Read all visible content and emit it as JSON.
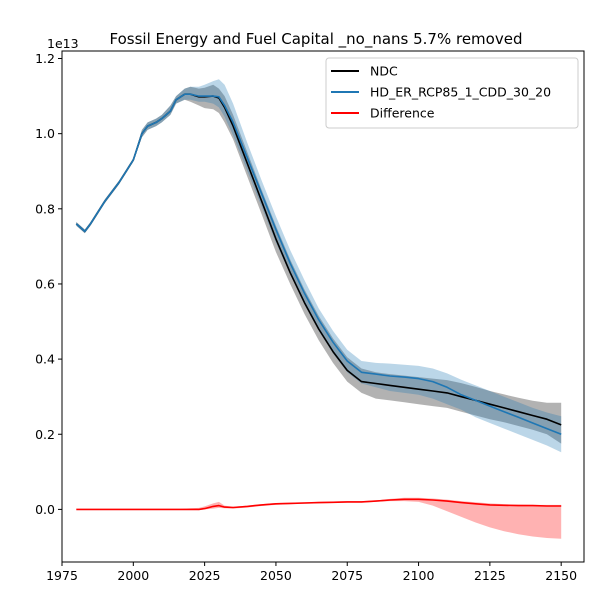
{
  "chart_data": {
    "type": "line",
    "title": "Fossil Energy and Fuel Capital _no_nans 5.7% removed",
    "xlabel": "",
    "ylabel": "",
    "y_offset_text": "1e13",
    "xlim": [
      1975,
      2158
    ],
    "ylim": [
      -0.14,
      1.22
    ],
    "y_scale_factor": 10000000000000.0,
    "x_ticks": [
      1975,
      2000,
      2025,
      2050,
      2075,
      2100,
      2125,
      2150
    ],
    "y_ticks": [
      0.0,
      0.2,
      0.4,
      0.6,
      0.8,
      1.0,
      1.2
    ],
    "y_tick_labels": [
      "0.0",
      "0.2",
      "0.4",
      "0.6",
      "0.8",
      "1.0",
      "1.2"
    ],
    "grid": false,
    "legend_position": "top-right",
    "x": [
      1980,
      1983,
      1985,
      1990,
      1995,
      2000,
      2003,
      2005,
      2008,
      2010,
      2013,
      2015,
      2018,
      2020,
      2023,
      2025,
      2028,
      2030,
      2032,
      2035,
      2040,
      2045,
      2050,
      2055,
      2060,
      2065,
      2070,
      2075,
      2080,
      2085,
      2090,
      2095,
      2100,
      2105,
      2110,
      2115,
      2120,
      2125,
      2130,
      2135,
      2140,
      2145,
      2150
    ],
    "series": [
      {
        "name": "NDC",
        "color": "#000000",
        "values": [
          0.76,
          0.74,
          0.76,
          0.82,
          0.87,
          0.93,
          1.0,
          1.02,
          1.03,
          1.04,
          1.06,
          1.09,
          1.105,
          1.105,
          1.098,
          1.098,
          1.1,
          1.095,
          1.07,
          1.02,
          0.92,
          0.82,
          0.72,
          0.63,
          0.55,
          0.48,
          0.42,
          0.37,
          0.34,
          0.335,
          0.33,
          0.325,
          0.32,
          0.315,
          0.31,
          0.3,
          0.29,
          0.28,
          0.27,
          0.26,
          0.25,
          0.24,
          0.225
        ],
        "band_low": [
          0.755,
          0.735,
          0.755,
          0.815,
          0.865,
          0.925,
          0.99,
          1.01,
          1.02,
          1.03,
          1.05,
          1.08,
          1.09,
          1.085,
          1.075,
          1.068,
          1.065,
          1.055,
          1.03,
          0.985,
          0.885,
          0.785,
          0.685,
          0.6,
          0.52,
          0.45,
          0.39,
          0.34,
          0.31,
          0.295,
          0.29,
          0.285,
          0.28,
          0.275,
          0.27,
          0.26,
          0.25,
          0.24,
          0.232,
          0.222,
          0.212,
          0.2,
          0.175
        ],
        "band_high": [
          0.765,
          0.745,
          0.765,
          0.825,
          0.875,
          0.935,
          1.01,
          1.03,
          1.04,
          1.05,
          1.075,
          1.1,
          1.12,
          1.125,
          1.12,
          1.122,
          1.13,
          1.12,
          1.1,
          1.05,
          0.95,
          0.85,
          0.755,
          0.665,
          0.585,
          0.515,
          0.455,
          0.405,
          0.375,
          0.365,
          0.36,
          0.356,
          0.352,
          0.348,
          0.344,
          0.336,
          0.326,
          0.315,
          0.306,
          0.297,
          0.289,
          0.284,
          0.284
        ]
      },
      {
        "name": "HD_ER_RCP85_1_CDD_30_20",
        "color": "#1f77b4",
        "values": [
          0.76,
          0.74,
          0.76,
          0.82,
          0.87,
          0.93,
          1.0,
          1.02,
          1.03,
          1.04,
          1.06,
          1.09,
          1.105,
          1.105,
          1.1,
          1.1,
          1.1,
          1.098,
          1.075,
          1.03,
          0.935,
          0.84,
          0.745,
          0.655,
          0.575,
          0.505,
          0.445,
          0.395,
          0.365,
          0.36,
          0.355,
          0.352,
          0.348,
          0.34,
          0.325,
          0.305,
          0.29,
          0.275,
          0.26,
          0.245,
          0.23,
          0.215,
          0.2
        ],
        "band_low": [
          0.755,
          0.735,
          0.755,
          0.815,
          0.865,
          0.925,
          0.99,
          1.01,
          1.02,
          1.03,
          1.05,
          1.08,
          1.09,
          1.09,
          1.085,
          1.085,
          1.08,
          1.07,
          1.045,
          0.995,
          0.9,
          0.805,
          0.71,
          0.625,
          0.545,
          0.475,
          0.415,
          0.365,
          0.335,
          0.325,
          0.315,
          0.31,
          0.305,
          0.295,
          0.28,
          0.265,
          0.245,
          0.23,
          0.215,
          0.2,
          0.185,
          0.17,
          0.152
        ],
        "band_high": [
          0.765,
          0.745,
          0.765,
          0.825,
          0.875,
          0.935,
          1.01,
          1.03,
          1.04,
          1.05,
          1.075,
          1.1,
          1.12,
          1.125,
          1.125,
          1.13,
          1.14,
          1.145,
          1.13,
          1.08,
          0.975,
          0.875,
          0.78,
          0.69,
          0.61,
          0.535,
          0.475,
          0.425,
          0.395,
          0.39,
          0.388,
          0.385,
          0.382,
          0.375,
          0.362,
          0.345,
          0.33,
          0.315,
          0.3,
          0.285,
          0.27,
          0.258,
          0.248
        ]
      },
      {
        "name": "Difference",
        "color": "#ff0000",
        "values": [
          0.0,
          0.0,
          0.0,
          0.0,
          0.0,
          0.0,
          0.0,
          0.0,
          0.0,
          0.0,
          0.0,
          0.0,
          0.0,
          0.0,
          0.0,
          0.002,
          0.008,
          0.01,
          0.006,
          0.005,
          0.008,
          0.012,
          0.015,
          0.016,
          0.017,
          0.018,
          0.019,
          0.02,
          0.02,
          0.022,
          0.025,
          0.027,
          0.027,
          0.025,
          0.022,
          0.018,
          0.015,
          0.012,
          0.011,
          0.01,
          0.01,
          0.009,
          0.009
        ],
        "band_low": [
          0.0,
          0.0,
          0.0,
          0.0,
          0.0,
          0.0,
          0.0,
          0.0,
          0.0,
          0.0,
          0.0,
          0.0,
          0.0,
          0.0,
          -0.002,
          0.0,
          0.002,
          0.004,
          0.003,
          0.002,
          0.005,
          0.009,
          0.012,
          0.014,
          0.015,
          0.016,
          0.017,
          0.018,
          0.018,
          0.02,
          0.022,
          0.022,
          0.02,
          0.01,
          -0.005,
          -0.02,
          -0.035,
          -0.048,
          -0.058,
          -0.066,
          -0.072,
          -0.076,
          -0.078
        ],
        "band_high": [
          0.0,
          0.0,
          0.0,
          0.0,
          0.0,
          0.0,
          0.0,
          0.0,
          0.0,
          0.0,
          0.0,
          0.0,
          0.002,
          0.003,
          0.004,
          0.008,
          0.016,
          0.02,
          0.01,
          0.007,
          0.01,
          0.014,
          0.017,
          0.018,
          0.019,
          0.02,
          0.021,
          0.022,
          0.022,
          0.024,
          0.028,
          0.031,
          0.031,
          0.029,
          0.026,
          0.022,
          0.019,
          0.016,
          0.014,
          0.013,
          0.012,
          0.012,
          0.012
        ]
      }
    ]
  }
}
